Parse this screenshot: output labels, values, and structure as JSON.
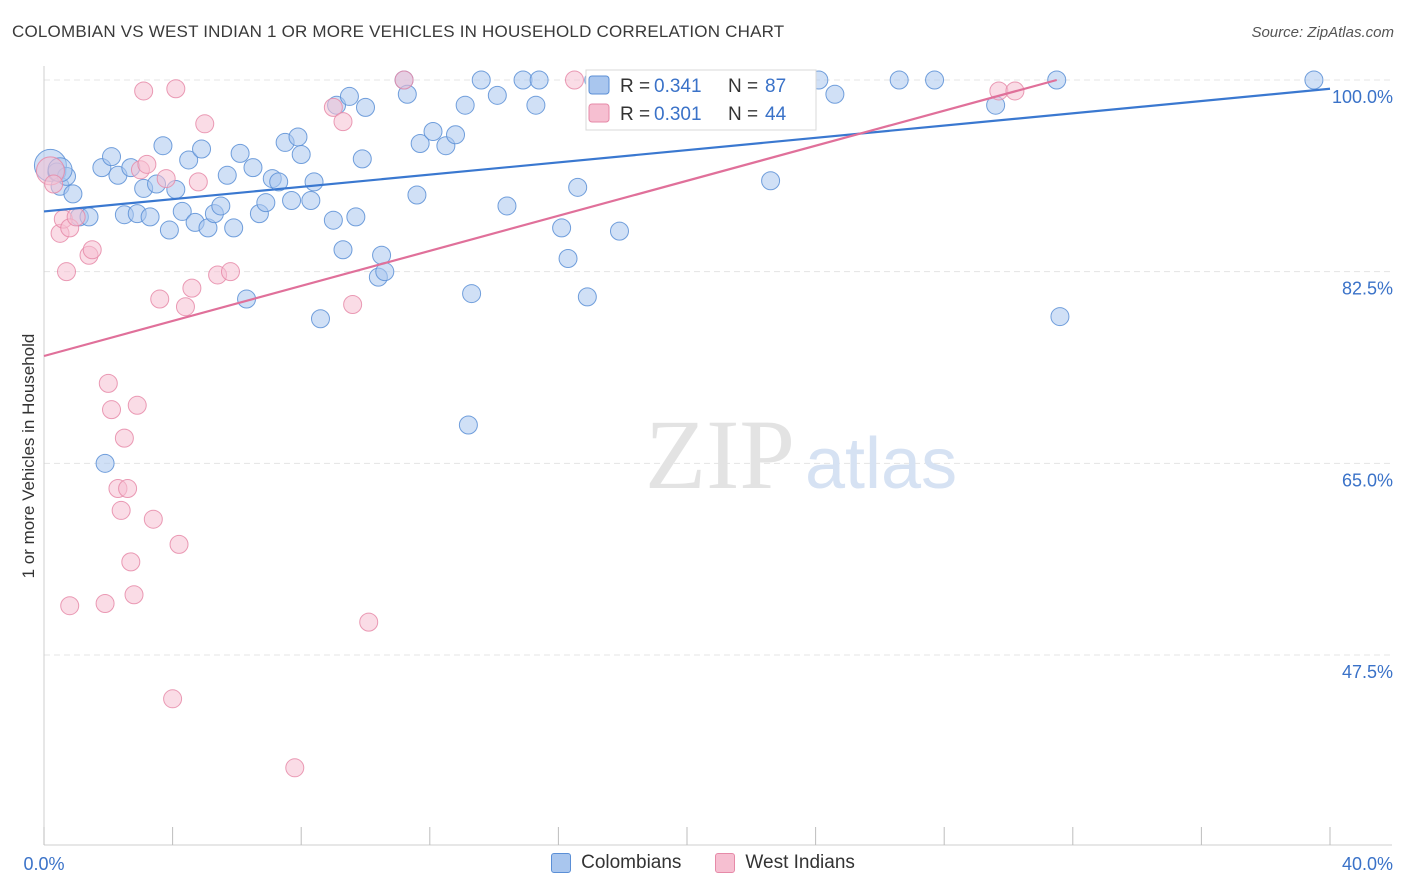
{
  "title": "COLOMBIAN VS WEST INDIAN 1 OR MORE VEHICLES IN HOUSEHOLD CORRELATION CHART",
  "source": "Source: ZipAtlas.com",
  "watermark": {
    "zip": "ZIP",
    "atlas": "atlas"
  },
  "legend": {
    "items": [
      {
        "r_label": "R = ",
        "r_value": "0.341",
        "n_label": "N = ",
        "n_value": "87"
      },
      {
        "r_label": "R = ",
        "r_value": "0.301",
        "n_label": "N = ",
        "n_value": "44"
      }
    ]
  },
  "bottom_legend": {
    "items": [
      "Colombians",
      "West Indians"
    ]
  },
  "colors": {
    "blue_fill": "#a9c6ee",
    "blue_stroke": "#5b8fd6",
    "blue_line": "#3a78d0",
    "pink_fill": "#f6bfd1",
    "pink_stroke": "#e68aa8",
    "pink_line": "#e0709a",
    "value_text": "#3a72c8",
    "grid": "#e4e4e4"
  },
  "chart_data": {
    "type": "scatter",
    "title": "COLOMBIAN VS WEST INDIAN 1 OR MORE VEHICLES IN HOUSEHOLD CORRELATION CHART",
    "xlabel": "",
    "ylabel": "1 or more Vehicles in Household",
    "xlim": [
      0,
      40
    ],
    "ylim": [
      32.7,
      101.5
    ],
    "x_tick_labels": [
      "0.0%",
      "40.0%"
    ],
    "y_tick_labels": [
      "100.0%",
      "82.5%",
      "65.0%",
      "47.5%"
    ],
    "y_ticks": [
      100,
      82.5,
      65,
      47.5
    ],
    "grid": true,
    "series": [
      {
        "name": "Colombians",
        "r": 0.341,
        "n": 87,
        "trend": {
          "x": [
            0,
            40
          ],
          "y": [
            88.0,
            99.2
          ]
        },
        "points": [
          [
            0.2,
            92.2
          ],
          [
            0.4,
            91.6
          ],
          [
            0.5,
            90.3
          ],
          [
            0.7,
            91.2
          ],
          [
            0.9,
            89.6
          ],
          [
            1.1,
            87.5
          ],
          [
            1.4,
            87.5
          ],
          [
            1.8,
            92.0
          ],
          [
            2.1,
            93.0
          ],
          [
            2.3,
            91.3
          ],
          [
            2.5,
            87.7
          ],
          [
            2.7,
            92.0
          ],
          [
            2.9,
            87.8
          ],
          [
            3.1,
            90.1
          ],
          [
            3.3,
            87.5
          ],
          [
            3.5,
            90.5
          ],
          [
            3.7,
            94.0
          ],
          [
            3.9,
            86.3
          ],
          [
            4.1,
            90.0
          ],
          [
            4.3,
            88.0
          ],
          [
            4.5,
            92.7
          ],
          [
            4.7,
            87.0
          ],
          [
            4.9,
            93.7
          ],
          [
            5.1,
            86.5
          ],
          [
            5.3,
            87.8
          ],
          [
            5.5,
            88.5
          ],
          [
            5.7,
            91.3
          ],
          [
            5.9,
            86.5
          ],
          [
            6.1,
            93.3
          ],
          [
            6.3,
            80.0
          ],
          [
            6.5,
            92.0
          ],
          [
            6.7,
            87.8
          ],
          [
            6.9,
            88.8
          ],
          [
            7.1,
            91.0
          ],
          [
            7.3,
            90.7
          ],
          [
            7.5,
            94.3
          ],
          [
            7.7,
            89.0
          ],
          [
            7.9,
            94.8
          ],
          [
            8.0,
            93.2
          ],
          [
            8.3,
            89.0
          ],
          [
            8.4,
            90.7
          ],
          [
            8.6,
            78.2
          ],
          [
            9.0,
            87.2
          ],
          [
            9.1,
            97.7
          ],
          [
            9.3,
            84.5
          ],
          [
            9.5,
            98.5
          ],
          [
            9.7,
            87.5
          ],
          [
            9.9,
            92.8
          ],
          [
            10.0,
            97.5
          ],
          [
            10.4,
            82.0
          ],
          [
            10.5,
            84.0
          ],
          [
            10.6,
            82.5
          ],
          [
            11.2,
            100.0
          ],
          [
            11.3,
            98.7
          ],
          [
            11.6,
            89.5
          ],
          [
            11.7,
            94.2
          ],
          [
            12.1,
            95.3
          ],
          [
            12.5,
            94.0
          ],
          [
            12.8,
            95.0
          ],
          [
            13.1,
            97.7
          ],
          [
            13.2,
            68.5
          ],
          [
            13.3,
            80.5
          ],
          [
            13.6,
            100.0
          ],
          [
            14.1,
            98.6
          ],
          [
            14.4,
            88.5
          ],
          [
            14.9,
            100.0
          ],
          [
            15.3,
            97.7
          ],
          [
            15.4,
            100.0
          ],
          [
            16.1,
            86.5
          ],
          [
            16.3,
            83.7
          ],
          [
            16.6,
            90.2
          ],
          [
            16.9,
            80.2
          ],
          [
            17.1,
            100.0
          ],
          [
            17.9,
            86.2
          ],
          [
            20.0,
            100.0
          ],
          [
            21.6,
            100.0
          ],
          [
            22.6,
            90.8
          ],
          [
            24.1,
            100.0
          ],
          [
            24.6,
            98.7
          ],
          [
            26.6,
            100.0
          ],
          [
            27.7,
            100.0
          ],
          [
            29.6,
            97.7
          ],
          [
            31.6,
            78.4
          ],
          [
            31.5,
            100.0
          ],
          [
            39.5,
            100.0
          ],
          [
            1.9,
            65.0
          ],
          [
            0.5,
            91.8
          ]
        ],
        "radii": {
          "0": 16,
          "86": 12
        }
      },
      {
        "name": "West Indians",
        "r": 0.301,
        "n": 44,
        "trend": {
          "x": [
            0,
            31.5
          ],
          "y": [
            74.8,
            100.0
          ]
        },
        "points": [
          [
            0.2,
            91.7
          ],
          [
            0.3,
            90.5
          ],
          [
            0.5,
            86.0
          ],
          [
            0.6,
            87.3
          ],
          [
            0.7,
            82.5
          ],
          [
            0.8,
            86.5
          ],
          [
            1.0,
            87.5
          ],
          [
            1.4,
            84.0
          ],
          [
            1.5,
            84.5
          ],
          [
            2.0,
            72.3
          ],
          [
            2.1,
            69.9
          ],
          [
            2.3,
            62.7
          ],
          [
            2.4,
            60.7
          ],
          [
            2.5,
            67.3
          ],
          [
            2.6,
            62.7
          ],
          [
            2.7,
            56.0
          ],
          [
            2.8,
            53.0
          ],
          [
            2.9,
            70.3
          ],
          [
            3.0,
            91.8
          ],
          [
            3.1,
            99.0
          ],
          [
            3.2,
            92.3
          ],
          [
            3.4,
            59.9
          ],
          [
            3.6,
            80.0
          ],
          [
            3.8,
            91.0
          ],
          [
            4.0,
            43.5
          ],
          [
            4.1,
            99.2
          ],
          [
            4.2,
            57.6
          ],
          [
            4.4,
            79.3
          ],
          [
            4.6,
            81.0
          ],
          [
            4.8,
            90.7
          ],
          [
            5.0,
            96.0
          ],
          [
            5.4,
            82.2
          ],
          [
            5.8,
            82.5
          ],
          [
            7.8,
            37.2
          ],
          [
            9.0,
            97.5
          ],
          [
            9.3,
            96.2
          ],
          [
            9.6,
            79.5
          ],
          [
            10.1,
            50.5
          ],
          [
            11.2,
            100.0
          ],
          [
            16.5,
            100.0
          ],
          [
            29.7,
            99.0
          ],
          [
            30.2,
            99.0
          ],
          [
            0.8,
            52.0
          ],
          [
            1.9,
            52.2
          ]
        ],
        "radii": {
          "0": 14
        }
      }
    ]
  }
}
